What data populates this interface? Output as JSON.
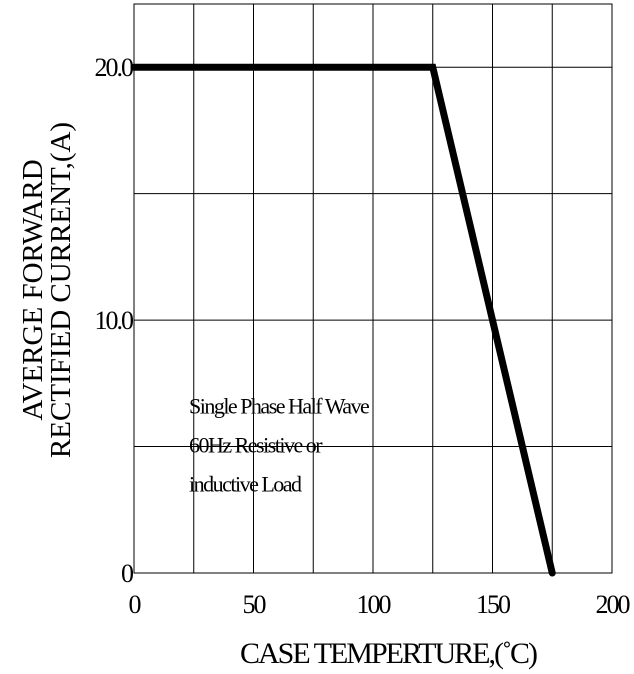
{
  "chart_data": {
    "type": "line",
    "title": "",
    "xlabel": "CASE TEMPERTURE,(˚C)",
    "ylabel_lines": [
      "AVERGE FORWARD",
      "RECTIFIED CURRENT,(A)"
    ],
    "xlim": [
      0,
      200
    ],
    "ylim": [
      0,
      22.5
    ],
    "x_ticks": [
      {
        "value": 0,
        "label": "0"
      },
      {
        "value": 50,
        "label": "50"
      },
      {
        "value": 100,
        "label": "100"
      },
      {
        "value": 150,
        "label": "150"
      },
      {
        "value": 200,
        "label": "200"
      }
    ],
    "y_ticks": [
      {
        "value": 0,
        "label": "0"
      },
      {
        "value": 10,
        "label": "10.0"
      },
      {
        "value": 20,
        "label": "20.0"
      }
    ],
    "grid": true,
    "x_grid_step": 25,
    "y_grid_step": 5,
    "series": [
      {
        "x": [
          0,
          125,
          175
        ],
        "y": [
          20,
          20,
          0
        ]
      }
    ],
    "annotation_lines": [
      "Single Phase Half Wave",
      "60Hz Resistive or",
      "inductive Load"
    ],
    "annotation_anchor": {
      "x": 23,
      "y": 6.3
    },
    "line_color": "#000000"
  }
}
